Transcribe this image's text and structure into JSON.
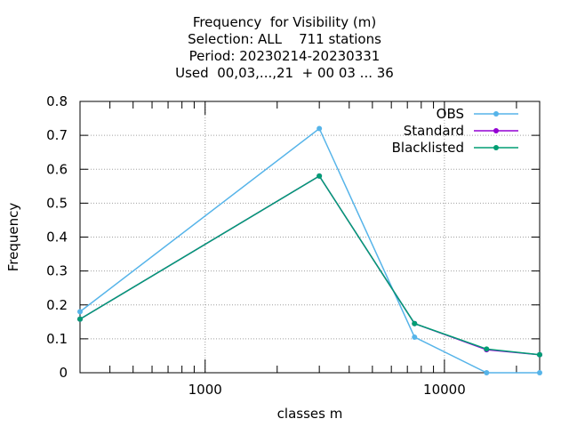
{
  "chart_data": {
    "type": "line",
    "title_lines": [
      "Frequency  for Visibility (m)",
      "Selection: ALL    711 stations",
      "Period: 20230214-20230331",
      "Used  00,03,...,21  + 00 03 ... 36"
    ],
    "xlabel": "classes m",
    "ylabel": "Frequency",
    "x_scale": "log",
    "xlim": [
      300,
      25000
    ],
    "ylim": [
      0,
      0.8
    ],
    "x_tick_labels": [
      "1000",
      "10000"
    ],
    "x_ticks": [
      1000,
      10000
    ],
    "y_ticks": [
      0,
      0.1,
      0.2,
      0.3,
      0.4,
      0.5,
      0.6,
      0.7,
      0.8
    ],
    "y_tick_labels": [
      "0",
      "0.1",
      "0.2",
      "0.3",
      "0.4",
      "0.5",
      "0.6",
      "0.7",
      "0.8"
    ],
    "grid": true,
    "legend_position": "top-right",
    "series": [
      {
        "name": "OBS",
        "color": "#56b4e9",
        "x": [
          300,
          3000,
          7500,
          15000,
          25000
        ],
        "y": [
          0.18,
          0.72,
          0.105,
          0.0,
          0.0
        ]
      },
      {
        "name": "Standard",
        "color": "#9400d3",
        "x": [
          300,
          3000,
          7500,
          15000,
          25000
        ],
        "y": [
          0.158,
          0.58,
          0.145,
          0.068,
          0.053
        ]
      },
      {
        "name": "Blacklisted",
        "color": "#009e73",
        "x": [
          300,
          3000,
          7500,
          15000,
          25000
        ],
        "y": [
          0.158,
          0.58,
          0.145,
          0.07,
          0.053
        ]
      }
    ]
  }
}
